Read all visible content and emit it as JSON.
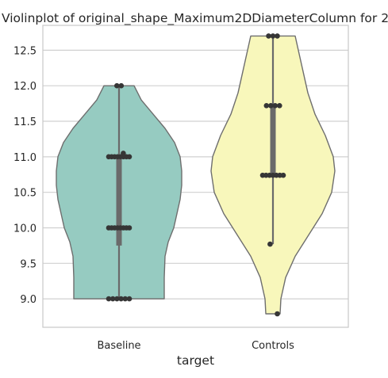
{
  "chart_data": {
    "type": "violin",
    "title": "Violinplot of original_shape_Maximum2DDiameterColumn for 2",
    "xlabel": "target",
    "ylabel": "",
    "categories": [
      "Baseline",
      "Controls"
    ],
    "ylim": [
      8.6,
      12.85
    ],
    "yticks": [
      "9.0",
      "9.5",
      "10.0",
      "10.5",
      "11.0",
      "11.5",
      "12.0",
      "12.5"
    ],
    "grid": true,
    "colors": {
      "Baseline": "#96cbc1",
      "Controls": "#f8f7bb",
      "outline": "#6e6e6e",
      "points": "#363636",
      "grid": "#d0d0d0",
      "axes": "#c8c8c8"
    },
    "series": [
      {
        "category": "Baseline",
        "points": [
          9.0,
          9.0,
          9.0,
          9.0,
          9.0,
          9.0,
          10.0,
          10.0,
          10.0,
          10.0,
          10.0,
          10.0,
          10.0,
          10.0,
          11.0,
          11.0,
          11.0,
          11.0,
          11.0,
          11.0,
          11.0,
          11.0,
          11.05,
          12.0,
          12.0
        ],
        "box": {
          "q1": 9.75,
          "q3": 11.0,
          "whisker_low": 9.0,
          "whisker_high": 12.0
        }
      },
      {
        "category": "Controls",
        "points": [
          8.79,
          9.77,
          10.74,
          10.74,
          10.74,
          10.74,
          10.74,
          10.74,
          10.74,
          11.72,
          11.72,
          11.72,
          11.72,
          12.7,
          12.7,
          12.7
        ],
        "box": {
          "q1": 10.74,
          "q3": 11.72,
          "whisker_low": 9.77,
          "whisker_high": 12.7
        }
      }
    ]
  }
}
